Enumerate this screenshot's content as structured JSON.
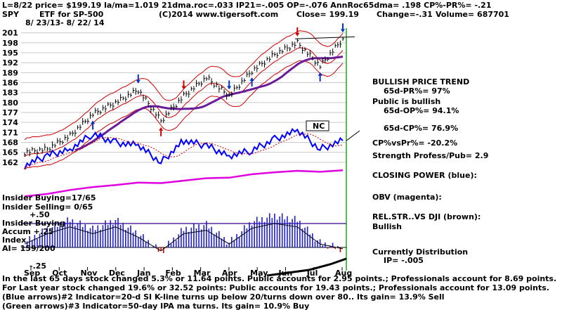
{
  "header": {
    "line1": "L=8/22  price= $199.19  la/ma=1.019  21dma.roc=.033  IP21=-.005  OP=-.076  AnnRoc65dma= .198  CP%-PR%= -.21",
    "ticker": "SPY",
    "etf": "ETF for SP-500",
    "copyright": "(C)2014 www.tigersoft.com",
    "close": "Close=  199.19",
    "change": "Change=-.31",
    "volume": "Volume=  687701",
    "date_range": "8/ 23/13- 8/ 22/ 14"
  },
  "right_panel": {
    "trend_title": "BULLISH PRICE TREND",
    "pr": "65d-PR%= 97%",
    "public": "Public is bullish",
    "op": "65d-OP%= 94.1%",
    "cp": "65d-CP%= 76.9%",
    "cpvspr": "CP%vsPr%= -20.2%",
    "strength": "Strength Profess/Pub= 2.9",
    "closing_power": "CLOSING POWER (blue):",
    "obv": "OBV (magenta):",
    "relstr": "REL.STR..VS DJI (brown):",
    "relstr_value": "Bullish",
    "distribution": "Currently Distribution",
    "ip": "IP= -.005"
  },
  "left_panel": {
    "insider_buying": "Insider Buying=17/65",
    "insider_selling": "Insider Selling= 0/65",
    "plus50": "+.50",
    "insider_buying2": "Insider Buying",
    "accum": "Accum  +.25",
    "index": "Index",
    "ai": "AI= 159/200",
    "minus25": "-.25"
  },
  "nc_label": "NC",
  "footer": {
    "line1": "In the last 65 days stock changed  5.3% or  11.64 points.  Public accounts for  2.95 points.;  Professionals account for  8.69 points.",
    "line2": "For Last year stock changed  19.6% or 32.52 points:  Public accounts for  19.43 points.;  Professionals account for  13.09 points.",
    "line3": "(Blue arrows)#2 Indicator=20-d SI K-line turns up below 20/turns down over 80.. Its gain= 13.9% Sell",
    "line4": "(Green arrows)#3 Indicator=50-day IPA ma turns. Its gain= 10.9% Buy"
  },
  "chart_data": {
    "type": "line",
    "title": "SPY",
    "ylabel": "",
    "ylim": [
      159,
      202
    ],
    "y_ticks": [
      162,
      165,
      168,
      171,
      174,
      177,
      180,
      183,
      186,
      189,
      192,
      195,
      198,
      201
    ],
    "x_ticks": [
      "Sep",
      "Oct",
      "Nov",
      "Dec",
      "Jan",
      "Feb",
      "Mar",
      "Apr",
      "May",
      "Jun",
      "Jul",
      "Aug"
    ],
    "price_series": {
      "name": "",
      "x": [
        "Aug 23",
        "Sep",
        "Oct",
        "Nov",
        "Dec",
        "Jan",
        "Feb 3",
        "Feb",
        "Mar",
        "Apr",
        "May",
        "Jun",
        "Jul",
        "Aug 7",
        "Aug 22"
      ],
      "values": [
        165.0,
        166.0,
        170.0,
        176.5,
        180.0,
        183.8,
        174.5,
        182.0,
        187.5,
        182.0,
        189.5,
        194.5,
        198.0,
        191.0,
        199.2
      ]
    },
    "closing_power_series": {
      "name": "CLOSING POWER (blue)",
      "values": [
        161,
        164,
        166,
        170.5,
        168,
        167,
        162,
        168.5,
        167,
        164,
        165.5,
        169,
        171.5,
        166,
        168.5
      ]
    },
    "obv_series": {
      "name": "OBV (magenta)",
      "values": [
        153.3,
        153.8,
        154.6,
        155.2,
        155.6,
        156.1,
        156.0,
        156.5,
        157.0,
        157.1,
        157.8,
        158.2,
        158.5,
        158.3,
        158.6
      ]
    },
    "accum_index_series": {
      "name": "Accum Index",
      "values": [
        0.05,
        0.2,
        0.3,
        0.2,
        0.3,
        0.15,
        -0.05,
        0.2,
        0.25,
        0.05,
        0.28,
        0.35,
        0.3,
        0.05,
        -0.02
      ]
    },
    "accum_ylim": [
      -0.4,
      0.6
    ],
    "grid": true
  }
}
